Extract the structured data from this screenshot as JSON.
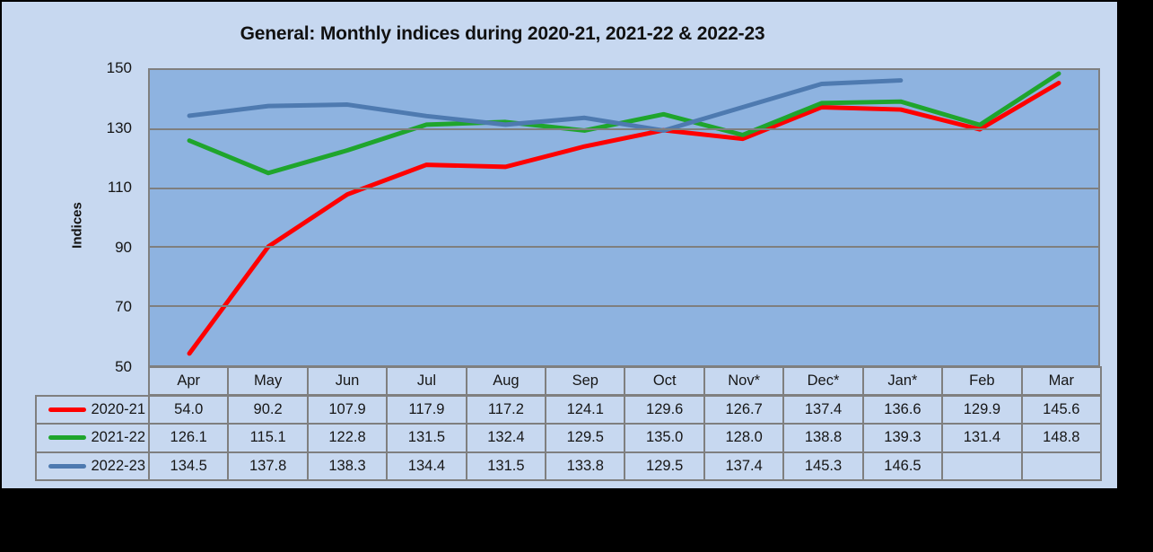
{
  "card": {
    "background": "#C7D8F0",
    "plot_background": "#8EB3E0",
    "gridline_color": "#7F7F7F",
    "border_color": "#000000"
  },
  "chart_data": {
    "type": "line",
    "title": "General: Monthly indices during 2020-21, 2021-22 & 2022-23",
    "ylabel": "Indices",
    "xlabel": "",
    "categories": [
      "Apr",
      "May",
      "Jun",
      "Jul",
      "Aug",
      "Sep",
      "Oct",
      "Nov*",
      "Dec*",
      "Jan*",
      "Feb",
      "Mar"
    ],
    "ylim": [
      50,
      150
    ],
    "ytick_step": 20,
    "grid": "horizontal",
    "legend_position": "table-left",
    "series": [
      {
        "name": "2020-21",
        "color": "#FF0000",
        "values": [
          54.0,
          90.2,
          107.9,
          117.9,
          117.2,
          124.1,
          129.6,
          126.7,
          137.4,
          136.6,
          129.9,
          145.6
        ]
      },
      {
        "name": "2021-22",
        "color": "#1FA52C",
        "values": [
          126.1,
          115.1,
          122.8,
          131.5,
          132.4,
          129.5,
          135.0,
          128.0,
          138.8,
          139.3,
          131.4,
          148.8
        ]
      },
      {
        "name": "2022-23",
        "color": "#4E7AB0",
        "values": [
          134.5,
          137.8,
          138.3,
          134.4,
          131.5,
          133.8,
          129.5,
          137.4,
          145.3,
          146.5,
          null,
          null
        ]
      }
    ]
  }
}
